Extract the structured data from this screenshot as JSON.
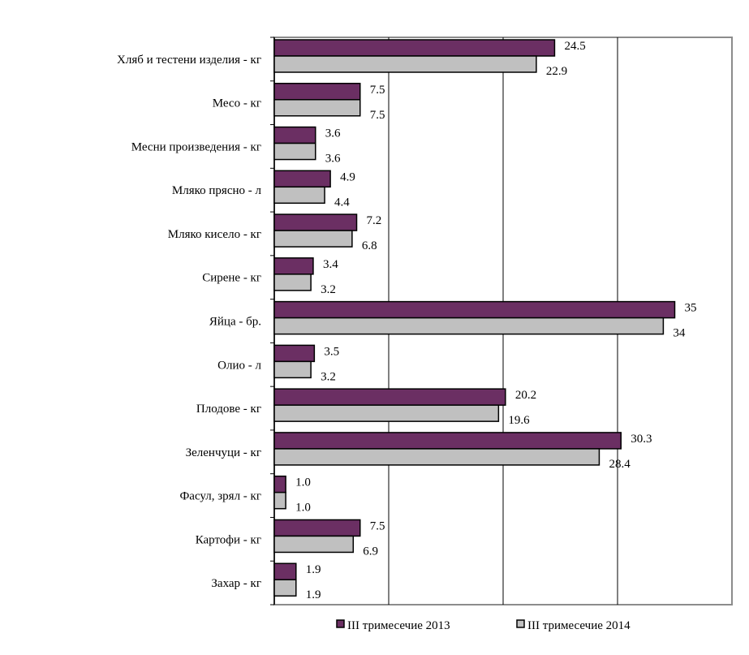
{
  "chart_data": {
    "type": "bar",
    "orientation": "horizontal",
    "title": "",
    "xlabel": "",
    "ylabel": "",
    "xlim": [
      0,
      40
    ],
    "grid": true,
    "legend_position": "bottom",
    "categories": [
      "Хляб и тестени изделия - кг",
      "Месо - кг",
      "Месни произведения  - кг",
      "Мляко прясно - л",
      "Мляко кисело - кг",
      "Сирене - кг",
      "Яйца - бр.",
      "Олио - л",
      "Плодове - кг",
      "Зеленчуци - кг",
      "Фасул, зрял - кг",
      "Картофи - кг",
      "Захар - кг"
    ],
    "series": [
      {
        "name": "III тримесечие 2013",
        "color": "#6b2f63",
        "values": [
          24.5,
          7.5,
          3.6,
          4.9,
          7.2,
          3.4,
          35,
          3.5,
          20.2,
          30.3,
          1.0,
          7.5,
          1.9
        ],
        "labels": [
          "24.5",
          "7.5",
          "3.6",
          "4.9",
          "7.2",
          "3.4",
          "35",
          "3.5",
          "20.2",
          "30.3",
          "1.0",
          "7.5",
          "1.9"
        ]
      },
      {
        "name": "III тримесечие 2014",
        "color": "#c0c0c0",
        "values": [
          22.9,
          7.5,
          3.6,
          4.4,
          6.8,
          3.2,
          34,
          3.2,
          19.6,
          28.4,
          1.0,
          6.9,
          1.9
        ],
        "labels": [
          "22.9",
          "7.5",
          "3.6",
          "4.4",
          "6.8",
          "3.2",
          "34",
          "3.2",
          "19.6",
          "28.4",
          "1.0",
          "6.9",
          "1.9"
        ]
      }
    ]
  }
}
